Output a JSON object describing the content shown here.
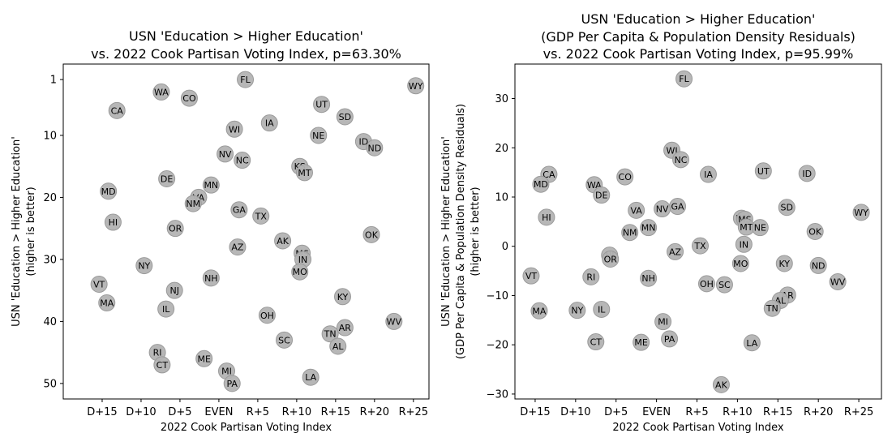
{
  "chart_data": [
    {
      "type": "scatter",
      "title_lines": [
        "USN 'Education > Higher Education'",
        "vs. 2022 Cook Partisan Voting Index, p=63.30%"
      ],
      "xlabel": "2022 Cook Partisan Voting Index",
      "ylabel_lines": [
        "USN 'Education > Higher Education'",
        "(higher is better)"
      ],
      "xlim": [
        -20,
        27
      ],
      "ylim": [
        52.5,
        -1.5
      ],
      "y_inverted": true,
      "x_ticks": [
        -15,
        -10,
        -5,
        0,
        5,
        10,
        15,
        20,
        25
      ],
      "x_tick_labels": [
        "D+15",
        "D+10",
        "D+5",
        "EVEN",
        "R+5",
        "R+10",
        "R+15",
        "R+20",
        "R+25"
      ],
      "y_ticks": [
        1,
        10,
        20,
        30,
        40,
        50
      ],
      "y_tick_labels": [
        "1",
        "10",
        "20",
        "30",
        "40",
        "50"
      ],
      "marker_color": "#b3b3b3",
      "points": [
        {
          "label": "FL",
          "x": 3.4,
          "y": 1
        },
        {
          "label": "WY",
          "x": 25.3,
          "y": 2
        },
        {
          "label": "WA",
          "x": -7.4,
          "y": 3
        },
        {
          "label": "CO",
          "x": -3.8,
          "y": 4
        },
        {
          "label": "UT",
          "x": 13.2,
          "y": 5
        },
        {
          "label": "CA",
          "x": -13.1,
          "y": 6
        },
        {
          "label": "SD",
          "x": 16.2,
          "y": 7
        },
        {
          "label": "IA",
          "x": 6.5,
          "y": 8
        },
        {
          "label": "WI",
          "x": 2.0,
          "y": 9
        },
        {
          "label": "NE",
          "x": 12.8,
          "y": 10
        },
        {
          "label": "ID",
          "x": 18.6,
          "y": 11
        },
        {
          "label": "ND",
          "x": 20.0,
          "y": 12
        },
        {
          "label": "NV",
          "x": 0.8,
          "y": 13
        },
        {
          "label": "NC",
          "x": 3.0,
          "y": 14
        },
        {
          "label": "KS",
          "x": 10.4,
          "y": 15
        },
        {
          "label": "MT",
          "x": 11.0,
          "y": 16
        },
        {
          "label": "DE",
          "x": -6.7,
          "y": 17
        },
        {
          "label": "MN",
          "x": -1.0,
          "y": 18
        },
        {
          "label": "MD",
          "x": -14.2,
          "y": 19
        },
        {
          "label": "VA",
          "x": -2.6,
          "y": 20
        },
        {
          "label": "NM",
          "x": -3.3,
          "y": 21
        },
        {
          "label": "GA",
          "x": 2.6,
          "y": 22
        },
        {
          "label": "TX",
          "x": 5.4,
          "y": 23
        },
        {
          "label": "HI",
          "x": -13.6,
          "y": 24
        },
        {
          "label": "OR",
          "x": -5.6,
          "y": 25
        },
        {
          "label": "OK",
          "x": 19.6,
          "y": 26
        },
        {
          "label": "AK",
          "x": 8.2,
          "y": 27
        },
        {
          "label": "AZ",
          "x": 2.4,
          "y": 28
        },
        {
          "label": "MS",
          "x": 10.7,
          "y": 29
        },
        {
          "label": "IN",
          "x": 10.8,
          "y": 30
        },
        {
          "label": "NY",
          "x": -9.6,
          "y": 31
        },
        {
          "label": "MO",
          "x": 10.4,
          "y": 32
        },
        {
          "label": "NH",
          "x": -1.0,
          "y": 33
        },
        {
          "label": "VT",
          "x": -15.4,
          "y": 34
        },
        {
          "label": "NJ",
          "x": -5.7,
          "y": 35
        },
        {
          "label": "KY",
          "x": 15.9,
          "y": 36
        },
        {
          "label": "MA",
          "x": -14.4,
          "y": 37
        },
        {
          "label": "IL",
          "x": -6.8,
          "y": 38
        },
        {
          "label": "OH",
          "x": 6.2,
          "y": 39
        },
        {
          "label": "WV",
          "x": 22.5,
          "y": 40
        },
        {
          "label": "AR",
          "x": 16.2,
          "y": 41
        },
        {
          "label": "TN",
          "x": 14.3,
          "y": 42
        },
        {
          "label": "SC",
          "x": 8.4,
          "y": 43
        },
        {
          "label": "AL",
          "x": 15.3,
          "y": 44
        },
        {
          "label": "RI",
          "x": -7.9,
          "y": 45
        },
        {
          "label": "ME",
          "x": -1.9,
          "y": 46
        },
        {
          "label": "CT",
          "x": -7.3,
          "y": 47
        },
        {
          "label": "MI",
          "x": 1.0,
          "y": 48
        },
        {
          "label": "LA",
          "x": 11.8,
          "y": 49
        },
        {
          "label": "PA",
          "x": 1.7,
          "y": 50
        }
      ]
    },
    {
      "type": "scatter",
      "title_lines": [
        "USN 'Education > Higher Education'",
        "(GDP Per Capita & Population Density Residuals)",
        "vs. 2022 Cook Partisan Voting Index, p=95.99%"
      ],
      "xlabel": "2022 Cook Partisan Voting Index",
      "ylabel_lines": [
        "USN 'Education > Higher Education'",
        "(GDP Per Capita & Population Density Residuals)",
        "(higher is better)"
      ],
      "xlim": [
        -17.5,
        27.8
      ],
      "ylim": [
        -31,
        37
      ],
      "y_inverted": false,
      "x_ticks": [
        -15,
        -10,
        -5,
        0,
        5,
        10,
        15,
        20,
        25
      ],
      "x_tick_labels": [
        "D+15",
        "D+10",
        "D+5",
        "EVEN",
        "R+5",
        "R+10",
        "R+15",
        "R+20",
        "R+25"
      ],
      "y_ticks": [
        30,
        20,
        10,
        0,
        -10,
        -20,
        -30
      ],
      "y_tick_labels": [
        "30",
        "20",
        "10",
        "0",
        "−10",
        "−20",
        "−30"
      ],
      "marker_color": "#b3b3b3",
      "points": [
        {
          "label": "FL",
          "x": 3.4,
          "y": 34.0
        },
        {
          "label": "WI",
          "x": 1.9,
          "y": 19.5
        },
        {
          "label": "NC",
          "x": 3.0,
          "y": 17.6
        },
        {
          "label": "UT",
          "x": 13.2,
          "y": 15.3
        },
        {
          "label": "ID",
          "x": 18.6,
          "y": 14.8
        },
        {
          "label": "CA",
          "x": -13.3,
          "y": 14.6
        },
        {
          "label": "IA",
          "x": 6.4,
          "y": 14.6
        },
        {
          "label": "CO",
          "x": -3.9,
          "y": 14.1
        },
        {
          "label": "MD",
          "x": -14.3,
          "y": 12.6
        },
        {
          "label": "WA",
          "x": -7.7,
          "y": 12.5
        },
        {
          "label": "DE",
          "x": -6.8,
          "y": 10.4
        },
        {
          "label": "GA",
          "x": 2.6,
          "y": 8.1
        },
        {
          "label": "SD",
          "x": 16.1,
          "y": 7.9
        },
        {
          "label": "NV",
          "x": 0.7,
          "y": 7.6
        },
        {
          "label": "VA",
          "x": -2.5,
          "y": 7.3
        },
        {
          "label": "WY",
          "x": 25.3,
          "y": 6.9
        },
        {
          "label": "HI",
          "x": -13.6,
          "y": 5.9
        },
        {
          "label": "KS",
          "x": 10.5,
          "y": 5.7
        },
        {
          "label": "MS",
          "x": 10.9,
          "y": 5.5
        },
        {
          "label": "MT",
          "x": 11.1,
          "y": 3.9
        },
        {
          "label": "NE",
          "x": 12.8,
          "y": 3.8
        },
        {
          "label": "MN",
          "x": -1.0,
          "y": 3.8
        },
        {
          "label": "OK",
          "x": 19.6,
          "y": 3.0
        },
        {
          "label": "NM",
          "x": -3.3,
          "y": 2.8
        },
        {
          "label": "IN",
          "x": 10.8,
          "y": 0.4
        },
        {
          "label": "TX",
          "x": 5.4,
          "y": 0.1
        },
        {
          "label": "AZ",
          "x": 2.3,
          "y": -1.1
        },
        {
          "label": "NJ",
          "x": -5.8,
          "y": -1.8
        },
        {
          "label": "OR",
          "x": -5.7,
          "y": -2.6
        },
        {
          "label": "MO",
          "x": 10.4,
          "y": -3.5
        },
        {
          "label": "KY",
          "x": 15.8,
          "y": -3.5
        },
        {
          "label": "ND",
          "x": 20.0,
          "y": -3.9
        },
        {
          "label": "VT",
          "x": -15.5,
          "y": -6.0
        },
        {
          "label": "RI",
          "x": -8.1,
          "y": -6.2
        },
        {
          "label": "NH",
          "x": -1.0,
          "y": -6.5
        },
        {
          "label": "WV",
          "x": 22.4,
          "y": -7.2
        },
        {
          "label": "OH",
          "x": 6.2,
          "y": -7.6
        },
        {
          "label": "SC",
          "x": 8.4,
          "y": -7.8
        },
        {
          "label": "AR",
          "x": 16.2,
          "y": -9.9
        },
        {
          "label": "AL",
          "x": 15.3,
          "y": -11.0
        },
        {
          "label": "TN",
          "x": 14.3,
          "y": -12.6
        },
        {
          "label": "IL",
          "x": -6.8,
          "y": -12.8
        },
        {
          "label": "NY",
          "x": -9.8,
          "y": -13.0
        },
        {
          "label": "MA",
          "x": -14.5,
          "y": -13.1
        },
        {
          "label": "MI",
          "x": 0.8,
          "y": -15.3
        },
        {
          "label": "PA",
          "x": 1.6,
          "y": -18.8
        },
        {
          "label": "CT",
          "x": -7.5,
          "y": -19.4
        },
        {
          "label": "ME",
          "x": -1.9,
          "y": -19.5
        },
        {
          "label": "LA",
          "x": 11.8,
          "y": -19.6
        },
        {
          "label": "AK",
          "x": 8.0,
          "y": -28.1
        }
      ]
    }
  ]
}
